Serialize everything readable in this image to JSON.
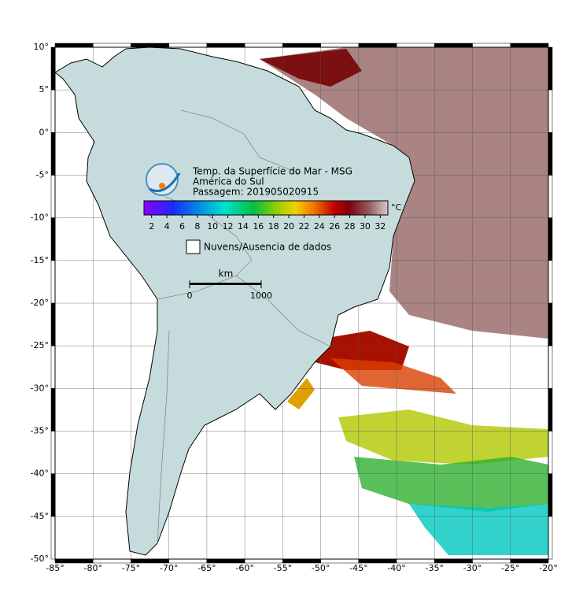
{
  "header": {
    "title": "Temp. da Superfície do Mar - MSG",
    "region": "América do Sul",
    "pass": "Passagem: 201905020915"
  },
  "colorbar": {
    "ticks": [
      2,
      4,
      6,
      8,
      10,
      12,
      14,
      16,
      18,
      20,
      22,
      24,
      26,
      28,
      30,
      32
    ],
    "range": [
      1,
      33
    ],
    "unit": "°C"
  },
  "legend": {
    "clouds": "Nuvens/Ausencia de dados"
  },
  "scale_bar": {
    "unit": "km",
    "ticks": [
      0,
      1000
    ]
  },
  "map": {
    "lon_range": [
      -85,
      -20
    ],
    "lat_range": [
      -50,
      10
    ],
    "lon_ticks": [
      {
        "value": -85,
        "label": "-85°"
      },
      {
        "value": -80,
        "label": "-80°"
      },
      {
        "value": -75,
        "label": "-75°"
      },
      {
        "value": -70,
        "label": "-70°"
      },
      {
        "value": -65,
        "label": "-65°"
      },
      {
        "value": -60,
        "label": "-60°"
      },
      {
        "value": -55,
        "label": "-55°"
      },
      {
        "value": -50,
        "label": "-50°"
      },
      {
        "value": -45,
        "label": "-45°"
      },
      {
        "value": -40,
        "label": "-40°"
      },
      {
        "value": -35,
        "label": "-35°"
      },
      {
        "value": -30,
        "label": "-30°"
      },
      {
        "value": -25,
        "label": "-25°"
      },
      {
        "value": -20,
        "label": "-20°"
      }
    ],
    "lat_ticks": [
      {
        "value": 10,
        "label": "10°"
      },
      {
        "value": 5,
        "label": "5°"
      },
      {
        "value": 0,
        "label": "0°"
      },
      {
        "value": -5,
        "label": "-5°"
      },
      {
        "value": -10,
        "label": "-10°"
      },
      {
        "value": -15,
        "label": "-15°"
      },
      {
        "value": -20,
        "label": "-20°"
      },
      {
        "value": -25,
        "label": "-25°"
      },
      {
        "value": -30,
        "label": "-30°"
      },
      {
        "value": -35,
        "label": "-35°"
      },
      {
        "value": -40,
        "label": "-40°"
      },
      {
        "value": -45,
        "label": "-45°"
      },
      {
        "value": -50,
        "label": "-50°"
      }
    ]
  }
}
